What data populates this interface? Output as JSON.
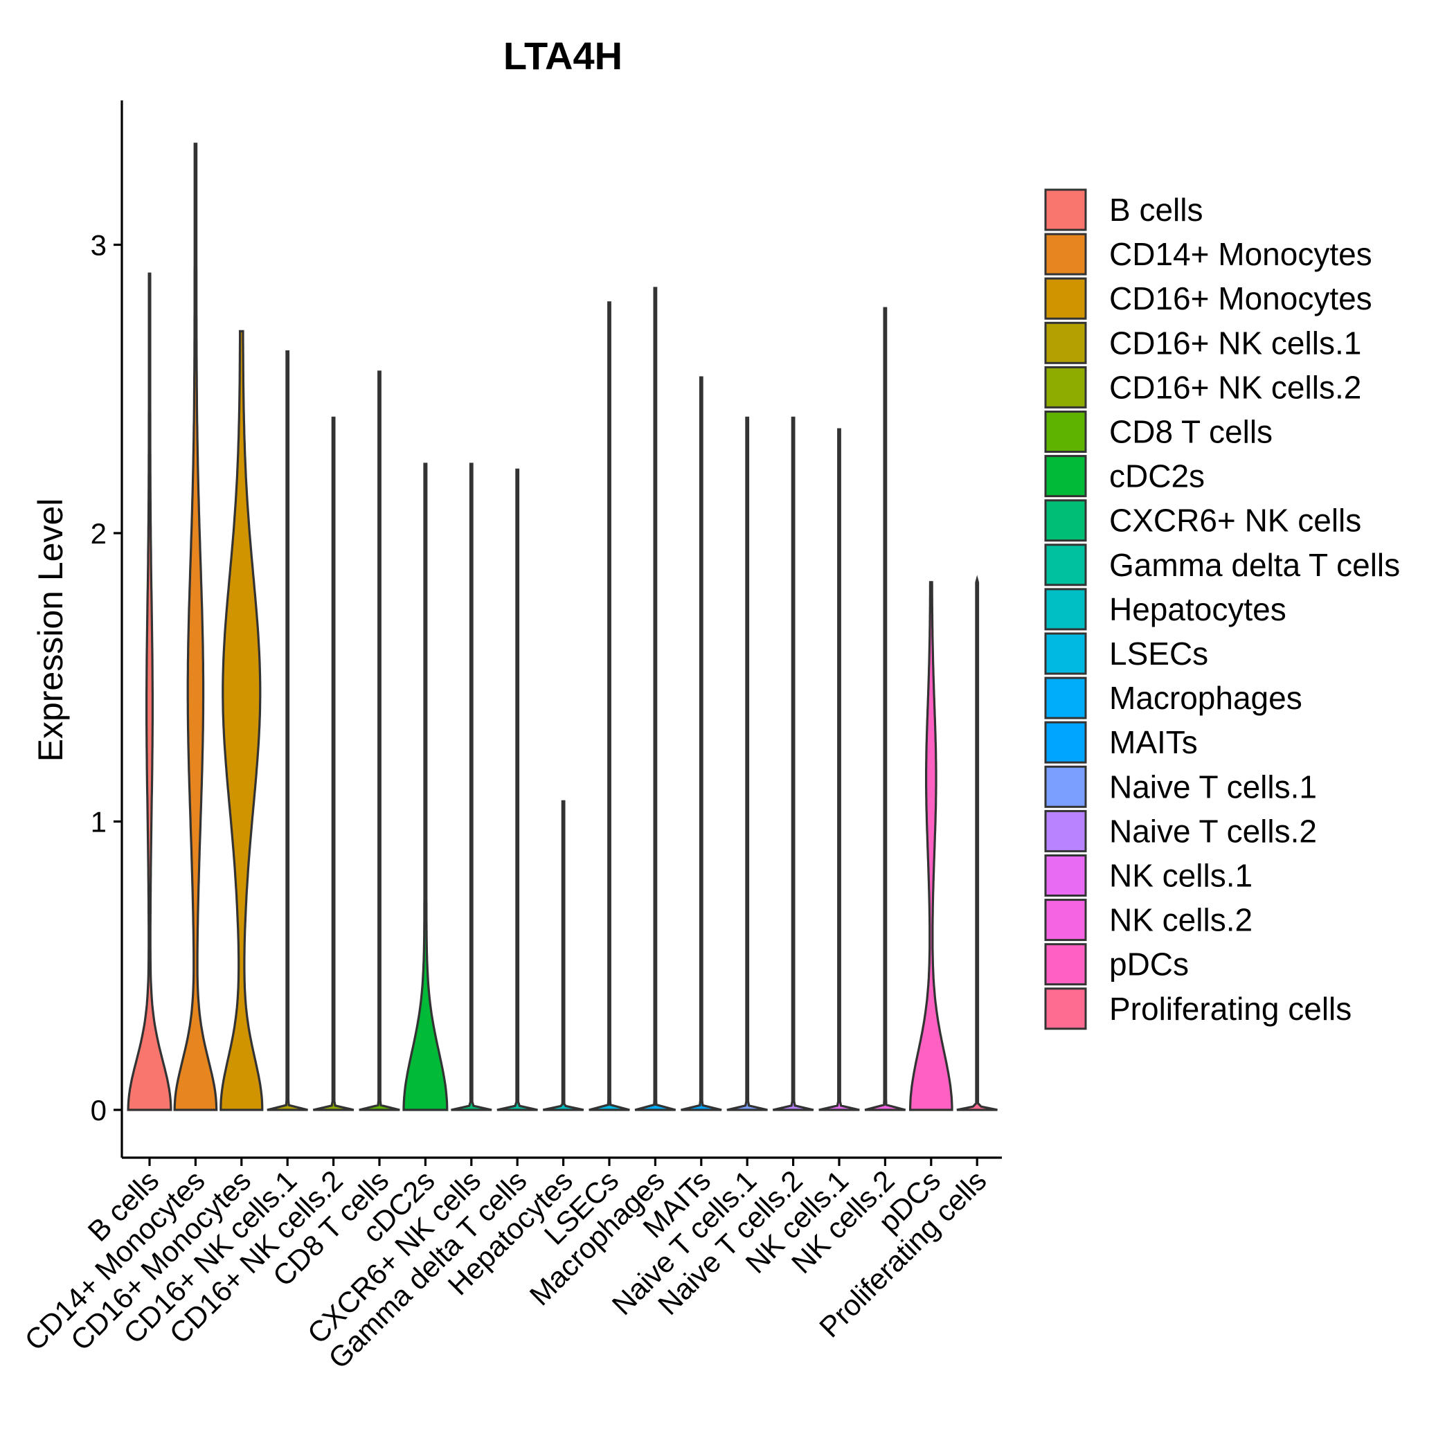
{
  "chart_data": {
    "type": "violin",
    "title": "LTA4H",
    "xlabel": "",
    "ylabel": "Expression Level",
    "ylim": [
      -0.16,
      3.45
    ],
    "yticks": [
      0,
      1,
      2,
      3
    ],
    "categories": [
      "B cells",
      "CD14+ Monocytes",
      "CD16+ Monocytes",
      "CD16+ NK cells.1",
      "CD16+ NK cells.2",
      "CD8 T cells",
      "cDC2s",
      "CXCR6+ NK cells",
      "Gamma delta T cells",
      "Hepatocytes",
      "LSECs",
      "Macrophages",
      "MAITs",
      "Naive T cells.1",
      "Naive T cells.2",
      "NK cells.1",
      "NK cells.2",
      "pDCs",
      "Proliferating cells"
    ],
    "colors": [
      "#F8766D",
      "#E7851E",
      "#D09400",
      "#B2A100",
      "#8EAB00",
      "#5EB300",
      "#00BA38",
      "#00BF74",
      "#00C19F",
      "#00BFC4",
      "#00B9E3",
      "#00ADFA",
      "#00A5FF",
      "#7B9FFF",
      "#B983FF",
      "#E76BF3",
      "#F564E3",
      "#FF61C3",
      "#FF6C91"
    ],
    "max_values": [
      2.9,
      3.35,
      2.7,
      2.63,
      2.4,
      2.56,
      2.24,
      2.24,
      2.22,
      1.07,
      2.8,
      2.85,
      2.54,
      2.4,
      2.4,
      2.36,
      2.78,
      1.83,
      1.84
    ],
    "legend": {
      "position": "right",
      "entries": [
        "B cells",
        "CD14+ Monocytes",
        "CD16+ Monocytes",
        "CD16+ NK cells.1",
        "CD16+ NK cells.2",
        "CD8 T cells",
        "cDC2s",
        "CXCR6+ NK cells",
        "Gamma delta T cells",
        "Hepatocytes",
        "LSECs",
        "Macrophages",
        "MAITs",
        "Naive T cells.1",
        "Naive T cells.2",
        "NK cells.1",
        "NK cells.2",
        "pDCs",
        "Proliferating cells"
      ]
    }
  }
}
